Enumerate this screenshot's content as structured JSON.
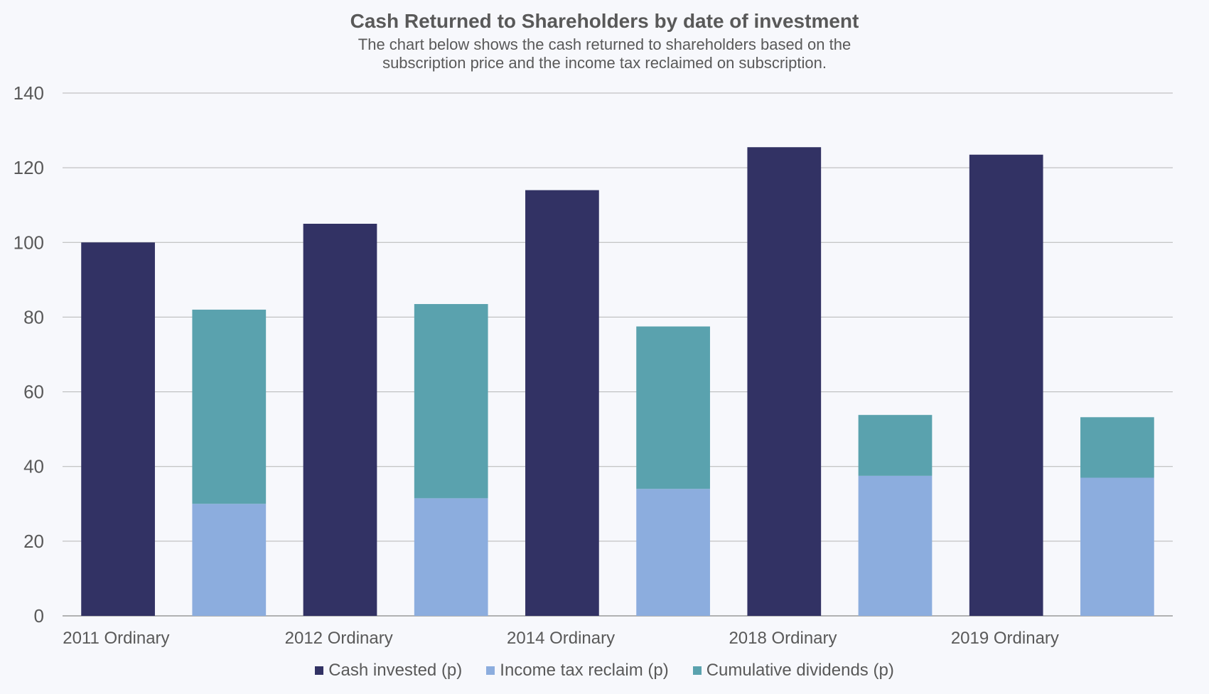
{
  "chart_data": {
    "type": "bar",
    "title": "Cash Returned to Shareholders by date of investment",
    "subtitle_lines": [
      "The chart below shows the cash returned to shareholders based on the",
      "subscription price and the income tax reclaimed on subscription."
    ],
    "xlabel": "",
    "ylabel": "",
    "ylim": [
      0,
      140
    ],
    "yticks": [
      0,
      20,
      40,
      60,
      80,
      100,
      120,
      140
    ],
    "grid": true,
    "legend_position": "bottom",
    "categories": [
      "2011 Ordinary",
      "2012 Ordinary",
      "2014 Ordinary",
      "2018 Ordinary",
      "2019 Ordinary"
    ],
    "series": [
      {
        "name": "Cash invested (p)",
        "color": "#323264",
        "values": [
          100,
          105,
          114,
          125.5,
          123.5
        ]
      },
      {
        "name": "Income tax reclaim (p)",
        "color": "#8cadde",
        "values": [
          30,
          31.5,
          34,
          37.5,
          37
        ]
      },
      {
        "name": "Cumulative dividends (p)",
        "color": "#5aa2ae",
        "values": [
          52,
          52,
          43.5,
          16.3,
          16.2
        ]
      }
    ],
    "stacked_series": [
      "Income tax reclaim (p)",
      "Cumulative dividends (p)"
    ]
  }
}
